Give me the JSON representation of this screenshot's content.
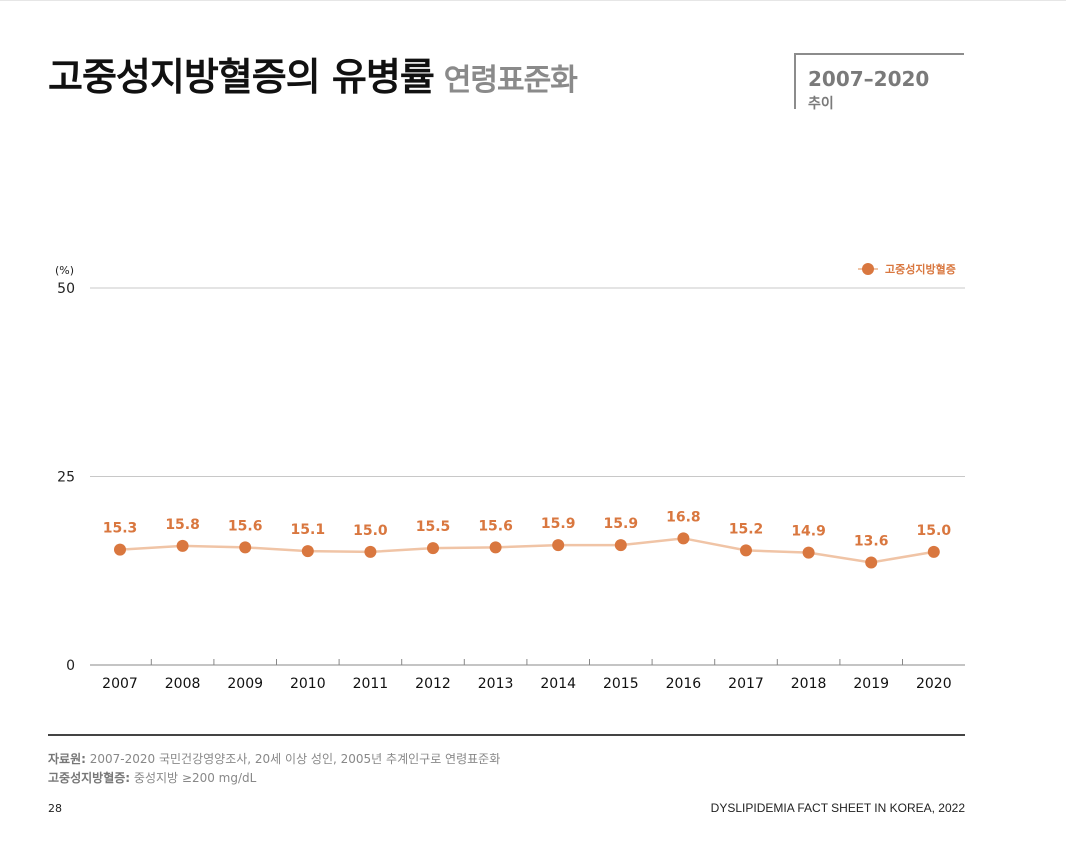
{
  "header": {
    "title_main": "고중성지방혈증의 유병률",
    "title_sub": "연령표준화",
    "period_range": "2007–2020",
    "period_label": "추이"
  },
  "colors": {
    "point": "#d9773f",
    "line": "#f0c4a6",
    "label": "#d9773f",
    "grid": "#c8c8c8",
    "axis": "#888888"
  },
  "chart_data": {
    "type": "line",
    "x": [
      "2007",
      "2008",
      "2009",
      "2010",
      "2011",
      "2012",
      "2013",
      "2014",
      "2015",
      "2016",
      "2017",
      "2018",
      "2019",
      "2020"
    ],
    "series": [
      {
        "name": "고중성지방혈증",
        "values": [
          15.3,
          15.8,
          15.6,
          15.1,
          15.0,
          15.5,
          15.6,
          15.9,
          15.9,
          16.8,
          15.2,
          14.9,
          13.6,
          15.0
        ]
      }
    ],
    "value_labels": [
      "15.3",
      "15.8",
      "15.6",
      "15.1",
      "15.0",
      "15.5",
      "15.6",
      "15.9",
      "15.9",
      "16.8",
      "15.2",
      "14.9",
      "13.6",
      "15.0"
    ],
    "ylabel": "(%)",
    "ylim": [
      0,
      50
    ],
    "yticks": [
      "0",
      "25",
      "50"
    ],
    "grid": true,
    "legend": "top-right"
  },
  "notes": {
    "source_label": "자료원:",
    "source_text": " 2007-2020 국민건강영양조사, 20세 이상 성인, 2005년 추계인구로 연령표준화",
    "definition_label": "고중성지방혈증:",
    "definition_text": " 중성지방 ≥200 mg/dL"
  },
  "footer": {
    "page_number": "28",
    "publication": "DYSLIPIDEMIA FACT SHEET IN KOREA, 2022"
  }
}
